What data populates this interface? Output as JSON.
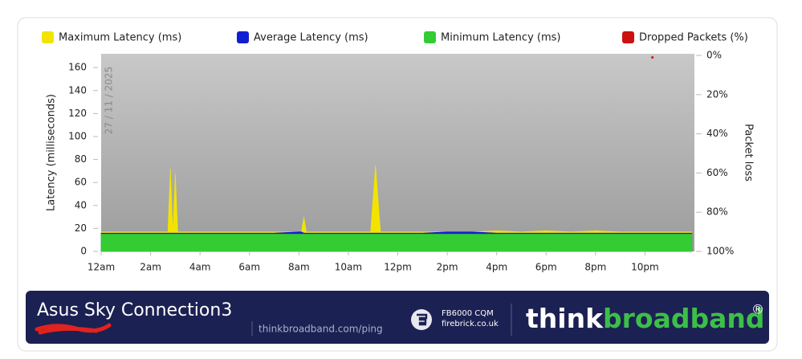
{
  "chart_data": {
    "type": "area",
    "ylabel": "Latency (milliseconds)",
    "y2label": "Packet loss",
    "date_label": "27 / 11 / 2025",
    "xlim": [
      0,
      24
    ],
    "xticks": [
      {
        "value": 0,
        "label": "12am"
      },
      {
        "value": 2,
        "label": "2am"
      },
      {
        "value": 4,
        "label": "4am"
      },
      {
        "value": 6,
        "label": "6am"
      },
      {
        "value": 8,
        "label": "8am"
      },
      {
        "value": 10,
        "label": "10am"
      },
      {
        "value": 12,
        "label": "12pm"
      },
      {
        "value": 14,
        "label": "2pm"
      },
      {
        "value": 16,
        "label": "4pm"
      },
      {
        "value": 18,
        "label": "6pm"
      },
      {
        "value": 20,
        "label": "8pm"
      },
      {
        "value": 22,
        "label": "10pm"
      }
    ],
    "ylim": [
      0,
      172
    ],
    "yticks": [
      0,
      20,
      40,
      60,
      80,
      100,
      120,
      140,
      160
    ],
    "y2lim": [
      100,
      0
    ],
    "y2ticks": [
      {
        "value": 0,
        "label": "0%"
      },
      {
        "value": 20,
        "label": "20%"
      },
      {
        "value": 40,
        "label": "40%"
      },
      {
        "value": 60,
        "label": "60%"
      },
      {
        "value": 80,
        "label": "80%"
      },
      {
        "value": 100,
        "label": "100%"
      }
    ],
    "grid": false,
    "x": [
      0,
      1,
      2,
      2.7,
      2.8,
      2.9,
      3.0,
      3.1,
      4,
      5,
      6,
      7,
      8,
      8.1,
      8.2,
      8.3,
      9,
      10,
      10.9,
      11.1,
      11.3,
      12,
      13,
      14,
      15,
      16,
      17,
      18,
      19,
      20,
      21,
      22,
      23,
      23.9
    ],
    "series": [
      {
        "name": "Maximum Latency (ms)",
        "color": "#f2e400",
        "values": [
          17,
          17,
          17,
          17,
          72,
          17,
          68,
          17,
          17,
          17,
          17,
          17,
          17,
          17,
          30,
          17,
          17,
          17,
          17,
          75,
          17,
          17,
          17,
          17,
          17,
          18,
          17,
          18,
          17,
          18,
          17,
          17,
          17,
          17
        ]
      },
      {
        "name": "Average Latency (ms)",
        "color": "#1020d0",
        "values": [
          16,
          16,
          16,
          16,
          16,
          16,
          16,
          16,
          16,
          16,
          16,
          16,
          17,
          17,
          16,
          16,
          16,
          16,
          16,
          16,
          16,
          16,
          16,
          17,
          17,
          16,
          16,
          16,
          16,
          16,
          16,
          16,
          16,
          16
        ]
      },
      {
        "name": "Minimum Latency (ms)",
        "color": "#33cc33",
        "values": [
          15,
          15,
          15,
          15,
          15,
          15,
          15,
          15,
          15,
          15,
          15,
          15,
          15,
          15,
          15,
          15,
          15,
          15,
          15,
          15,
          15,
          15,
          15,
          15,
          15,
          15,
          15,
          15,
          15,
          15,
          15,
          15,
          15,
          15
        ]
      },
      {
        "name": "Dropped Packets (%)",
        "color": "#cc1111",
        "axis": "y2",
        "x": [
          22.3
        ],
        "values": [
          1
        ]
      }
    ]
  },
  "footer": {
    "title": "Asus Sky Connection3",
    "link": "thinkbroadband.com/ping",
    "partner_name": "FB6000 CQM",
    "partner_site": "firebrick.co.uk",
    "brand_think": "think",
    "brand_broadband": "broadband",
    "reg": "®"
  }
}
